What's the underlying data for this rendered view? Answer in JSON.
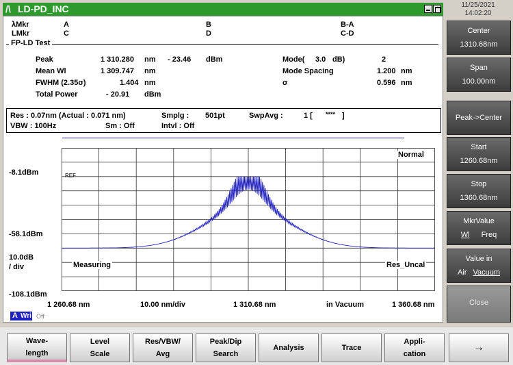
{
  "window": {
    "logo": "/\\",
    "title": "LD-PD_INC"
  },
  "datetime": {
    "date": "11/25/2021",
    "time": "14:02:20"
  },
  "markers": {
    "row1_label": "λMkr",
    "row2_label": "LMkr",
    "a": "A",
    "b": "B",
    "ba": "B-A",
    "c": "C",
    "d": "D",
    "cd": "C-D"
  },
  "section_title": "FP-LD Test",
  "results": {
    "peak_label": "Peak",
    "peak_value": "1 310.280",
    "peak_unit": "nm",
    "peak_level": "- 23.46",
    "peak_level_unit": "dBm",
    "mode_label": "Mode(",
    "mode_param": "3.0",
    "mode_param_unit": "dB)",
    "mode_value": "2",
    "mean_label": "Mean Wl",
    "mean_value": "1 309.747",
    "mean_unit": "nm",
    "spacing_label": "Mode Spacing",
    "spacing_value": "1.200",
    "spacing_unit": "nm",
    "fwhm_label": "FWHM (2.35σ)",
    "fwhm_value": "1.404",
    "fwhm_unit": "nm",
    "sigma_label": "σ",
    "sigma_value": "0.596",
    "sigma_unit": "nm",
    "total_label": "Total Power",
    "total_value": "- 20.91",
    "total_unit": "dBm"
  },
  "settings": {
    "res": "Res : 0.07nm (Actual : 0.071 nm)",
    "smplg": "Smplg :",
    "smplg_value": "501pt",
    "swpavg": "SwpAvg :",
    "swpavg_value": "1 [",
    "swpavg_stars": "****",
    "swpavg_close": "]",
    "vbw": "VBW :   100Hz",
    "sm": "Sm :   Off",
    "intvl": "Intvl :   Off"
  },
  "graph": {
    "mode_label": "Normal",
    "ref_label": "REF",
    "measuring_label": "Measuring",
    "res_uncal_label": "Res_Uncal",
    "y_top": "-8.1dBm",
    "y_mid": "-58.1dBm",
    "y_scale": "10.0dB",
    "y_scale_div": "/ div",
    "y_bottom": "-108.1dBm",
    "x_start": "1 260.68 nm",
    "x_div": "10.00 nm/div",
    "x_center": "1 310.68 nm",
    "x_medium": "in Vacuum",
    "x_stop": "1 360.68 nm",
    "trace_badge": "A",
    "trace_write": "Wri",
    "trace_off": "Off",
    "trace_color": "#2020c0"
  },
  "side_buttons": [
    {
      "l1": "Center",
      "l2": "1310.68nm"
    },
    {
      "l1": "Span",
      "l2": "100.00nm"
    },
    {
      "l1": "Peak->Center",
      "l2": ""
    },
    {
      "l1": "Start",
      "l2": "1260.68nm"
    },
    {
      "l1": "Stop",
      "l2": "1360.68nm"
    },
    {
      "l1": "MkrValue",
      "l2a": "Wl",
      "l2b": "Freq"
    },
    {
      "l1": "Value in",
      "l2a": "Air",
      "l2b": "Vacuum"
    },
    {
      "l1": "Close",
      "l2": ""
    }
  ],
  "soft_keys": [
    {
      "l1": "Wave-",
      "l2": "length"
    },
    {
      "l1": "Level",
      "l2": "Scale"
    },
    {
      "l1": "Res/VBW/",
      "l2": "Avg"
    },
    {
      "l1": "Peak/Dip",
      "l2": "Search"
    },
    {
      "l1": "Analysis",
      "l2": ""
    },
    {
      "l1": "Trace",
      "l2": ""
    },
    {
      "l1": "Appli-",
      "l2": "cation"
    },
    {
      "l1": "→",
      "l2": ""
    }
  ]
}
